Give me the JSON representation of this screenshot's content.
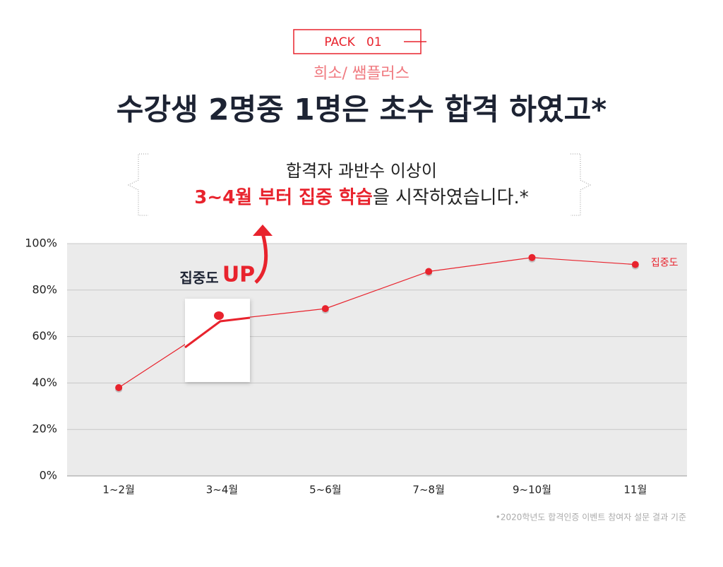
{
  "chart_data": {
    "type": "line",
    "pack_label": "PACK   01",
    "subtitle": "희소/ 쌤플러스",
    "title": "수강생 2명중 1명은 초수 합격 하였고*",
    "note_line1": "합격자 과반수 이상이",
    "note_highlight": "3~4월 부터 집중 학습",
    "note_rest": "을 시작하였습니다.*",
    "annotation": "집중도",
    "annotation_up": "UP",
    "footnote": "•2020학년도 합격인증 이벤트 참여자 설문 결과 기준",
    "categories": [
      "1~2월",
      "3~4월",
      "5~6월",
      "7~8월",
      "9~10월",
      "11월"
    ],
    "series": [
      {
        "name": "집중도",
        "color": "#e8232d",
        "values": [
          38,
          67,
          72,
          88,
          94,
          91
        ]
      }
    ],
    "ylim": [
      0,
      100
    ],
    "yticks": [
      {
        "value": 0,
        "label": "0%"
      },
      {
        "value": 20,
        "label": "20%"
      },
      {
        "value": 40,
        "label": "40%"
      },
      {
        "value": 60,
        "label": "60%"
      },
      {
        "value": 80,
        "label": "80%"
      },
      {
        "value": 100,
        "label": "100%"
      }
    ],
    "grid": true
  }
}
